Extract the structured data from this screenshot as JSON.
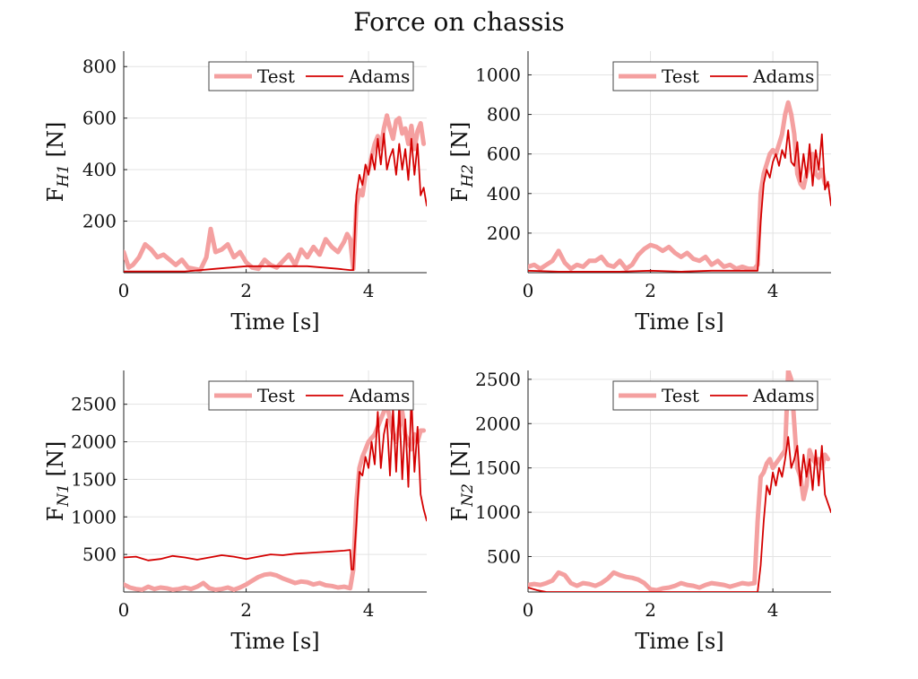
{
  "figure": {
    "title": "Force on chassis"
  },
  "colors": {
    "test": "#f4a0a0",
    "adams": "#d40000",
    "grid": "#e3e3e3",
    "axis": "#222222"
  },
  "chart_data": [
    {
      "type": "line",
      "ylabel_main": "F",
      "ylabel_sub": "H1",
      "ylabel_unit": " [N]",
      "xlabel": "Time [s]",
      "xlim": [
        0,
        4.95
      ],
      "ylim": [
        0,
        860
      ],
      "xticks": [
        0,
        2,
        4
      ],
      "yticks": [
        200,
        400,
        600,
        800
      ],
      "legend": {
        "placement": "top-right",
        "entries": [
          "Test",
          "Adams"
        ]
      },
      "series": [
        {
          "name": "Test",
          "x": [
            0,
            0.08,
            0.15,
            0.25,
            0.35,
            0.45,
            0.55,
            0.65,
            0.75,
            0.85,
            0.95,
            1.05,
            1.15,
            1.25,
            1.35,
            1.42,
            1.5,
            1.6,
            1.7,
            1.8,
            1.9,
            2.0,
            2.1,
            2.2,
            2.3,
            2.4,
            2.5,
            2.6,
            2.7,
            2.8,
            2.9,
            3.0,
            3.1,
            3.2,
            3.3,
            3.4,
            3.5,
            3.6,
            3.65,
            3.7,
            3.75,
            3.8,
            3.85,
            3.9,
            3.95,
            4.0,
            4.05,
            4.1,
            4.15,
            4.2,
            4.25,
            4.3,
            4.35,
            4.4,
            4.45,
            4.5,
            4.55,
            4.6,
            4.65,
            4.7,
            4.75,
            4.8,
            4.85,
            4.9
          ],
          "y": [
            80,
            20,
            30,
            60,
            110,
            90,
            60,
            70,
            50,
            30,
            50,
            20,
            15,
            10,
            60,
            170,
            80,
            90,
            110,
            60,
            80,
            40,
            20,
            15,
            50,
            30,
            20,
            45,
            70,
            30,
            90,
            60,
            100,
            70,
            130,
            100,
            80,
            120,
            150,
            130,
            15,
            260,
            320,
            300,
            380,
            400,
            450,
            500,
            530,
            480,
            560,
            610,
            560,
            520,
            590,
            600,
            540,
            560,
            500,
            570,
            480,
            550,
            580,
            500
          ]
        },
        {
          "name": "Adams",
          "x": [
            0,
            0.5,
            1.0,
            1.5,
            2.0,
            2.5,
            3.0,
            3.5,
            3.7,
            3.75,
            3.8,
            3.85,
            3.9,
            3.95,
            4.0,
            4.05,
            4.1,
            4.15,
            4.2,
            4.25,
            4.3,
            4.35,
            4.4,
            4.45,
            4.5,
            4.55,
            4.6,
            4.65,
            4.7,
            4.75,
            4.8,
            4.85,
            4.9,
            4.95
          ],
          "y": [
            5,
            5,
            5,
            15,
            25,
            25,
            25,
            15,
            10,
            10,
            300,
            380,
            340,
            420,
            380,
            460,
            400,
            520,
            420,
            540,
            400,
            450,
            480,
            380,
            500,
            400,
            480,
            360,
            520,
            380,
            500,
            300,
            330,
            260
          ]
        }
      ]
    },
    {
      "type": "line",
      "ylabel_main": "F",
      "ylabel_sub": "H2",
      "ylabel_unit": " [N]",
      "xlabel": "Time [s]",
      "xlim": [
        0,
        4.95
      ],
      "ylim": [
        0,
        1120
      ],
      "xticks": [
        0,
        2,
        4
      ],
      "yticks": [
        200,
        400,
        600,
        800,
        1000
      ],
      "legend": {
        "placement": "top-right",
        "entries": [
          "Test",
          "Adams"
        ]
      },
      "series": [
        {
          "name": "Test",
          "x": [
            0,
            0.1,
            0.2,
            0.3,
            0.4,
            0.5,
            0.6,
            0.7,
            0.8,
            0.9,
            1.0,
            1.1,
            1.2,
            1.3,
            1.4,
            1.5,
            1.6,
            1.7,
            1.8,
            1.9,
            2.0,
            2.1,
            2.2,
            2.3,
            2.4,
            2.5,
            2.6,
            2.7,
            2.8,
            2.9,
            3.0,
            3.1,
            3.2,
            3.3,
            3.4,
            3.5,
            3.6,
            3.7,
            3.75,
            3.8,
            3.85,
            3.9,
            3.95,
            4.0,
            4.05,
            4.1,
            4.15,
            4.2,
            4.25,
            4.3,
            4.35,
            4.4,
            4.45,
            4.5,
            4.55,
            4.6,
            4.65,
            4.7,
            4.75,
            4.8,
            4.85,
            4.9
          ],
          "y": [
            30,
            40,
            20,
            40,
            60,
            110,
            50,
            20,
            40,
            30,
            60,
            60,
            80,
            40,
            30,
            60,
            20,
            40,
            90,
            120,
            140,
            130,
            110,
            130,
            100,
            80,
            100,
            70,
            60,
            80,
            40,
            60,
            30,
            40,
            20,
            30,
            20,
            20,
            40,
            400,
            500,
            550,
            600,
            620,
            600,
            650,
            700,
            800,
            860,
            800,
            700,
            500,
            450,
            430,
            500,
            550,
            600,
            500,
            480,
            520,
            450,
            440
          ]
        },
        {
          "name": "Adams",
          "x": [
            0,
            0.5,
            1.0,
            1.5,
            2.0,
            2.5,
            3.0,
            3.5,
            3.7,
            3.75,
            3.8,
            3.85,
            3.9,
            3.95,
            4.0,
            4.05,
            4.1,
            4.15,
            4.2,
            4.25,
            4.3,
            4.35,
            4.4,
            4.45,
            4.5,
            4.55,
            4.6,
            4.65,
            4.7,
            4.75,
            4.8,
            4.85,
            4.9,
            4.95
          ],
          "y": [
            10,
            5,
            5,
            5,
            10,
            5,
            10,
            10,
            10,
            10,
            260,
            450,
            520,
            480,
            560,
            600,
            540,
            620,
            580,
            720,
            560,
            540,
            660,
            460,
            600,
            480,
            650,
            440,
            620,
            520,
            700,
            420,
            460,
            340
          ]
        }
      ]
    },
    {
      "type": "line",
      "ylabel_main": "F",
      "ylabel_sub": "N1",
      "ylabel_unit": " [N]",
      "xlabel": "Time [s]",
      "xlim": [
        0,
        4.95
      ],
      "ylim": [
        0,
        2950
      ],
      "xticks": [
        0,
        2,
        4
      ],
      "yticks": [
        500,
        1000,
        1500,
        2000,
        2500
      ],
      "legend": {
        "placement": "top-right",
        "entries": [
          "Test",
          "Adams"
        ]
      },
      "series": [
        {
          "name": "Test",
          "x": [
            0,
            0.1,
            0.2,
            0.3,
            0.4,
            0.5,
            0.6,
            0.7,
            0.8,
            0.9,
            1.0,
            1.1,
            1.2,
            1.3,
            1.4,
            1.5,
            1.6,
            1.7,
            1.8,
            1.9,
            2.0,
            2.1,
            2.2,
            2.3,
            2.4,
            2.5,
            2.6,
            2.7,
            2.8,
            2.9,
            3.0,
            3.1,
            3.2,
            3.3,
            3.4,
            3.5,
            3.6,
            3.7,
            3.75,
            3.8,
            3.85,
            3.9,
            3.95,
            4.0,
            4.05,
            4.1,
            4.15,
            4.2,
            4.25,
            4.3,
            4.35,
            4.4,
            4.45,
            4.5,
            4.55,
            4.6,
            4.65,
            4.7,
            4.75,
            4.8,
            4.85,
            4.9
          ],
          "y": [
            100,
            60,
            40,
            30,
            70,
            40,
            60,
            50,
            30,
            40,
            60,
            40,
            70,
            120,
            50,
            30,
            40,
            60,
            30,
            60,
            100,
            150,
            200,
            230,
            240,
            220,
            180,
            150,
            120,
            140,
            130,
            100,
            120,
            90,
            80,
            60,
            70,
            50,
            300,
            1200,
            1650,
            1800,
            1900,
            2000,
            2050,
            2100,
            2200,
            2300,
            2400,
            2500,
            2300,
            2100,
            2000,
            2200,
            2400,
            2100,
            2000,
            1900,
            2100,
            2000,
            2150,
            2150
          ]
        },
        {
          "name": "Adams",
          "x": [
            0,
            0.2,
            0.4,
            0.6,
            0.8,
            1.0,
            1.2,
            1.4,
            1.6,
            1.8,
            2.0,
            2.2,
            2.4,
            2.6,
            2.8,
            3.0,
            3.2,
            3.4,
            3.6,
            3.7,
            3.72,
            3.75,
            3.8,
            3.85,
            3.9,
            3.95,
            4.0,
            4.05,
            4.1,
            4.15,
            4.2,
            4.25,
            4.3,
            4.35,
            4.4,
            4.45,
            4.5,
            4.55,
            4.6,
            4.65,
            4.7,
            4.75,
            4.8,
            4.85,
            4.9,
            4.95
          ],
          "y": [
            460,
            470,
            420,
            440,
            480,
            460,
            430,
            460,
            490,
            470,
            440,
            470,
            500,
            490,
            510,
            520,
            530,
            540,
            550,
            560,
            300,
            300,
            900,
            1600,
            1550,
            1800,
            1650,
            2000,
            1700,
            2400,
            1650,
            2100,
            2300,
            1550,
            2450,
            1600,
            2500,
            1500,
            2300,
            1400,
            2600,
            1600,
            2200,
            1300,
            1100,
            950
          ]
        }
      ]
    },
    {
      "type": "line",
      "ylabel_main": "F",
      "ylabel_sub": "N2",
      "ylabel_unit": " [N]",
      "xlabel": "Time [s]",
      "xlim": [
        0,
        4.95
      ],
      "ylim": [
        100,
        2600
      ],
      "xticks": [
        0,
        2,
        4
      ],
      "yticks": [
        500,
        1000,
        1500,
        2000,
        2500
      ],
      "legend": {
        "placement": "top-right",
        "entries": [
          "Test",
          "Adams"
        ]
      },
      "series": [
        {
          "name": "Test",
          "x": [
            0,
            0.1,
            0.2,
            0.3,
            0.4,
            0.5,
            0.6,
            0.7,
            0.8,
            0.9,
            1.0,
            1.1,
            1.2,
            1.3,
            1.4,
            1.5,
            1.6,
            1.7,
            1.8,
            1.9,
            2.0,
            2.1,
            2.2,
            2.3,
            2.4,
            2.5,
            2.6,
            2.7,
            2.8,
            2.9,
            3.0,
            3.1,
            3.2,
            3.3,
            3.4,
            3.5,
            3.6,
            3.7,
            3.75,
            3.8,
            3.85,
            3.9,
            3.95,
            4.0,
            4.05,
            4.1,
            4.15,
            4.2,
            4.25,
            4.3,
            4.35,
            4.4,
            4.45,
            4.5,
            4.55,
            4.6,
            4.65,
            4.7,
            4.75,
            4.8,
            4.85,
            4.9
          ],
          "y": [
            180,
            190,
            180,
            200,
            230,
            320,
            290,
            200,
            170,
            200,
            190,
            170,
            200,
            250,
            320,
            290,
            270,
            260,
            240,
            200,
            130,
            120,
            140,
            150,
            170,
            200,
            180,
            170,
            150,
            180,
            200,
            190,
            180,
            160,
            180,
            200,
            190,
            200,
            900,
            1400,
            1450,
            1550,
            1600,
            1500,
            1550,
            1600,
            1650,
            1700,
            2600,
            2500,
            2000,
            1500,
            1400,
            1150,
            1300,
            1700,
            1600,
            1550,
            1600,
            1500,
            1650,
            1600
          ]
        },
        {
          "name": "Adams",
          "x": [
            0,
            0.15,
            0.3,
            3.7,
            3.75,
            3.8,
            3.85,
            3.9,
            3.95,
            4.0,
            4.05,
            4.1,
            4.15,
            4.2,
            4.25,
            4.3,
            4.35,
            4.4,
            4.45,
            4.5,
            4.55,
            4.6,
            4.65,
            4.7,
            4.75,
            4.8,
            4.85,
            4.9,
            4.95
          ],
          "y": [
            150,
            120,
            100,
            100,
            100,
            400,
            900,
            1300,
            1200,
            1450,
            1300,
            1500,
            1400,
            1600,
            1850,
            1500,
            1600,
            1750,
            1300,
            1650,
            1400,
            1600,
            1250,
            1700,
            1300,
            1750,
            1200,
            1100,
            1000
          ]
        }
      ]
    }
  ]
}
